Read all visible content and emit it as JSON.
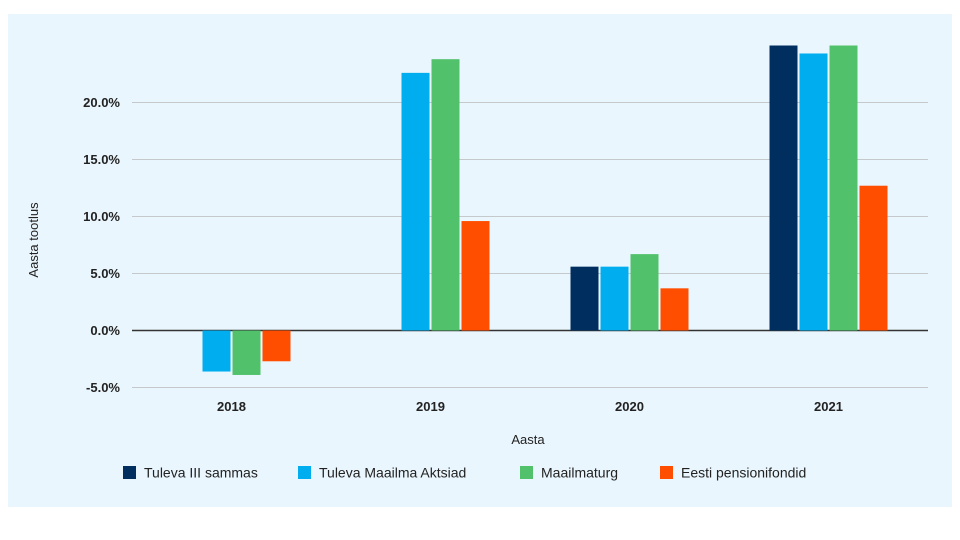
{
  "chart_data": {
    "type": "bar",
    "title": "",
    "xlabel": "Aasta",
    "ylabel": "Aasta tootlus",
    "categories": [
      "2018",
      "2019",
      "2020",
      "2021"
    ],
    "ylim": [
      -5,
      25
    ],
    "yticks": [
      -5,
      0,
      5,
      10,
      15,
      20
    ],
    "ytick_labels": [
      "-5.0%",
      "0.0%",
      "5.0%",
      "10.0%",
      "15.0%",
      "20.0%"
    ],
    "grid": true,
    "legend_position": "bottom",
    "series": [
      {
        "name": "Tuleva III sammas",
        "color": "#002f5f",
        "values": [
          null,
          null,
          5.6,
          25.0
        ]
      },
      {
        "name": "Tuleva Maailma Aktsiad",
        "color": "#00aeef",
        "values": [
          -3.6,
          22.6,
          5.6,
          24.3
        ]
      },
      {
        "name": "Maailmaturg",
        "color": "#51c16b",
        "values": [
          -3.9,
          23.8,
          6.7,
          25.0
        ]
      },
      {
        "name": "Eesti pensionifondid",
        "color": "#ff4e00",
        "values": [
          -2.7,
          9.6,
          3.7,
          12.7
        ]
      }
    ]
  }
}
